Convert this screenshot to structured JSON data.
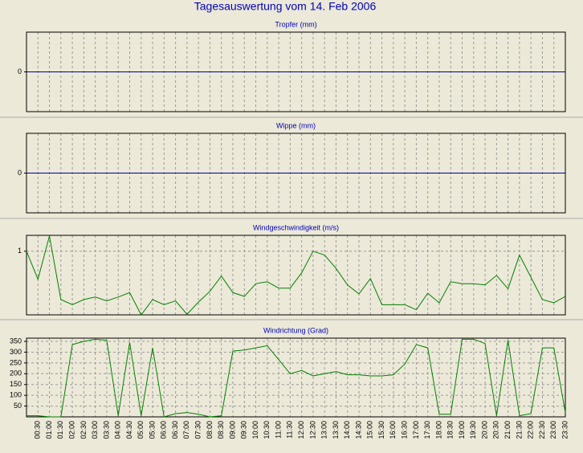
{
  "title": "Tagesauswertung vom 14. Feb 2006",
  "chart_data": [
    {
      "type": "line",
      "title": "Tropfer (mm)",
      "ylim": [
        -1,
        1
      ],
      "yticks": [
        0
      ],
      "grid": true,
      "series": [
        {
          "color": "#0000a0",
          "values": [
            0,
            0,
            0,
            0,
            0,
            0,
            0,
            0,
            0,
            0,
            0,
            0,
            0,
            0,
            0,
            0,
            0,
            0,
            0,
            0,
            0,
            0,
            0,
            0,
            0,
            0,
            0,
            0,
            0,
            0,
            0,
            0,
            0,
            0,
            0,
            0,
            0,
            0,
            0,
            0,
            0,
            0,
            0,
            0,
            0,
            0,
            0,
            0
          ]
        }
      ]
    },
    {
      "type": "line",
      "title": "Wippe (mm)",
      "ylim": [
        -1,
        1
      ],
      "yticks": [
        0
      ],
      "grid": true,
      "series": [
        {
          "color": "#0000a0",
          "values": [
            0,
            0,
            0,
            0,
            0,
            0,
            0,
            0,
            0,
            0,
            0,
            0,
            0,
            0,
            0,
            0,
            0,
            0,
            0,
            0,
            0,
            0,
            0,
            0,
            0,
            0,
            0,
            0,
            0,
            0,
            0,
            0,
            0,
            0,
            0,
            0,
            0,
            0,
            0,
            0,
            0,
            0,
            0,
            0,
            0,
            0,
            0,
            0
          ]
        }
      ]
    },
    {
      "type": "line",
      "title": "Windgeschwindigkeit (m/s)",
      "ylim": [
        0,
        1.25
      ],
      "yticks": [
        1
      ],
      "grid": true,
      "series": [
        {
          "color": "#008000",
          "values": [
            1.0,
            0.56,
            1.24,
            0.24,
            0.16,
            0.24,
            0.28,
            0.22,
            0.28,
            0.35,
            0,
            0.24,
            0.16,
            0.22,
            0.01,
            0.2,
            0.37,
            0.61,
            0.35,
            0.29,
            0.49,
            0.52,
            0.42,
            0.42,
            0.66,
            1.0,
            0.94,
            0.73,
            0.47,
            0.33,
            0.57,
            0.16,
            0.16,
            0.16,
            0.08,
            0.34,
            0.19,
            0.52,
            0.49,
            0.49,
            0.47,
            0.62,
            0.41,
            0.94,
            0.59,
            0.24,
            0.19,
            0.29
          ]
        }
      ]
    },
    {
      "type": "line",
      "title": "Windrichtung (Grad)",
      "ylim": [
        0,
        365
      ],
      "yticks": [
        50,
        100,
        150,
        200,
        250,
        300,
        350
      ],
      "grid": true,
      "categories": [
        null,
        "00:30",
        "01:00",
        "01:30",
        "02:00",
        "02:30",
        "03:00",
        "03:30",
        "04:00",
        "04:30",
        "05:00",
        "05:30",
        "06:00",
        "06:30",
        "07:00",
        "07:30",
        "08:00",
        "08:30",
        "09:00",
        "09:30",
        "10:00",
        "10:30",
        "11:00",
        "11:30",
        "12:00",
        "12:30",
        "13:00",
        "13:30",
        "14:00",
        "14:30",
        "15:00",
        "15:30",
        "16:00",
        "16:30",
        "17:00",
        "17:30",
        "18:00",
        "18:30",
        "19:00",
        "19:30",
        "20:00",
        "20:30",
        "21:00",
        "21:30",
        "22:00",
        "22:30",
        "23:00",
        "23:30"
      ],
      "series": [
        {
          "color": "#008000",
          "values": [
            5,
            5,
            0,
            0,
            335,
            350,
            360,
            355,
            5,
            345,
            5,
            320,
            0,
            15,
            20,
            12,
            0,
            5,
            305,
            310,
            320,
            330,
            265,
            200,
            215,
            190,
            200,
            210,
            195,
            195,
            190,
            190,
            195,
            245,
            335,
            320,
            12,
            12,
            360,
            360,
            340,
            5,
            355,
            5,
            15,
            320,
            320,
            20
          ]
        }
      ]
    }
  ]
}
